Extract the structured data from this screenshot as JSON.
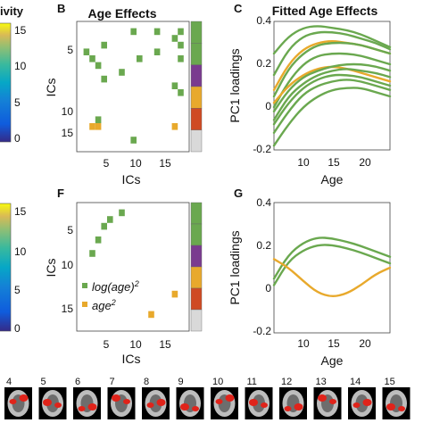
{
  "colors": {
    "green": "#6aa84f",
    "orange": "#e8a92c",
    "purple": "#7a3b8f",
    "red": "#cf4a23",
    "gray": "#d9d9d9"
  },
  "colorbar": {
    "label": "ivity",
    "ticks": [
      "15",
      "10",
      "5",
      "0"
    ]
  },
  "panels": {
    "B": {
      "letter": "B",
      "title": "Age Effects",
      "xlabel": "ICs",
      "ylabel": "ICs",
      "xticks": [
        "5",
        "10",
        "15"
      ],
      "yticks": [
        "5",
        "10",
        "15"
      ]
    },
    "C": {
      "letter": "C",
      "title": "Fitted Age Effects",
      "xlabel": "Age",
      "ylabel": "PC1 loadings",
      "xticks": [
        "10",
        "15",
        "20"
      ],
      "yticks": [
        "0.4",
        "0.2",
        "0",
        "-0.2"
      ]
    },
    "F": {
      "letter": "F",
      "xlabel": "ICs",
      "ylabel": "ICs",
      "xticks": [
        "5",
        "10",
        "15"
      ],
      "yticks": [
        "5",
        "10",
        "15"
      ],
      "legend_log": "log(age)",
      "legend_log_sup": "2",
      "legend_age": "age",
      "legend_age_sup": "2"
    },
    "G": {
      "letter": "G",
      "xlabel": "Age",
      "ylabel": "PC1 loadings",
      "xticks": [
        "10",
        "15",
        "20"
      ],
      "yticks": [
        "0.4",
        "0.2",
        "0",
        "-0.2"
      ]
    }
  },
  "brain_strip": {
    "labels": [
      "4",
      "5",
      "6",
      "7",
      "8",
      "9",
      "10",
      "11",
      "12",
      "13",
      "14",
      "15"
    ]
  },
  "chart_data": [
    {
      "type": "heatmap",
      "panel": "B",
      "title": "Age Effects",
      "xlabel": "ICs",
      "ylabel": "ICs",
      "xlim": [
        0,
        19
      ],
      "ylim": [
        0,
        19
      ],
      "green_cells": [
        [
          9,
          1
        ],
        [
          13,
          1
        ],
        [
          17,
          1
        ],
        [
          16,
          2
        ],
        [
          4,
          3
        ],
        [
          17,
          3
        ],
        [
          1,
          4
        ],
        [
          13,
          4
        ],
        [
          2,
          5
        ],
        [
          10,
          5
        ],
        [
          17,
          5
        ],
        [
          3,
          6
        ],
        [
          7,
          7
        ],
        [
          4,
          8
        ],
        [
          16,
          9
        ],
        [
          17,
          10
        ],
        [
          3,
          14
        ],
        [
          9,
          17
        ]
      ],
      "orange_cells": [
        [
          2,
          15
        ],
        [
          3,
          15
        ],
        [
          16,
          15
        ]
      ],
      "side_bar": [
        "green",
        "green",
        "purple",
        "orange",
        "red",
        "gray"
      ]
    },
    {
      "type": "line",
      "panel": "C",
      "title": "Fitted Age Effects",
      "xlabel": "Age",
      "ylabel": "PC1 loadings",
      "xlim": [
        6,
        22
      ],
      "ylim": [
        -0.2,
        0.4
      ],
      "x": [
        6,
        8,
        10,
        12,
        14,
        16,
        18,
        20,
        22
      ],
      "series": [
        {
          "color": "green",
          "values": [
            0.25,
            0.33,
            0.37,
            0.38,
            0.37,
            0.36,
            0.34,
            0.31,
            0.28
          ]
        },
        {
          "color": "green",
          "values": [
            0.15,
            0.27,
            0.33,
            0.35,
            0.35,
            0.34,
            0.32,
            0.3,
            0.27
          ]
        },
        {
          "color": "orange",
          "values": [
            0.08,
            0.2,
            0.27,
            0.3,
            0.31,
            0.3,
            0.29,
            0.27,
            0.25
          ]
        },
        {
          "color": "green",
          "values": [
            0.05,
            0.18,
            0.25,
            0.29,
            0.3,
            0.3,
            0.29,
            0.27,
            0.25
          ]
        },
        {
          "color": "green",
          "values": [
            0.0,
            0.12,
            0.2,
            0.24,
            0.25,
            0.25,
            0.24,
            0.22,
            0.2
          ]
        },
        {
          "color": "orange",
          "values": [
            0.02,
            0.1,
            0.15,
            0.18,
            0.19,
            0.18,
            0.16,
            0.14,
            0.12
          ]
        },
        {
          "color": "green",
          "values": [
            -0.02,
            0.08,
            0.14,
            0.17,
            0.19,
            0.2,
            0.2,
            0.19,
            0.17
          ]
        },
        {
          "color": "green",
          "values": [
            -0.06,
            0.05,
            0.11,
            0.15,
            0.17,
            0.18,
            0.17,
            0.16,
            0.14
          ]
        },
        {
          "color": "green",
          "values": [
            -0.08,
            0.02,
            0.09,
            0.13,
            0.15,
            0.15,
            0.14,
            0.12,
            0.1
          ]
        },
        {
          "color": "green",
          "values": [
            -0.12,
            -0.02,
            0.06,
            0.1,
            0.12,
            0.13,
            0.12,
            0.1,
            0.08
          ]
        },
        {
          "color": "green",
          "values": [
            -0.18,
            -0.08,
            0.0,
            0.05,
            0.08,
            0.09,
            0.09,
            0.07,
            0.05
          ]
        }
      ]
    },
    {
      "type": "heatmap",
      "panel": "F",
      "xlabel": "ICs",
      "ylabel": "ICs",
      "xlim": [
        0,
        19
      ],
      "ylim": [
        0,
        19
      ],
      "green_cells": [
        [
          7,
          1
        ],
        [
          5,
          2
        ],
        [
          4,
          3
        ],
        [
          3,
          5
        ],
        [
          2,
          7
        ]
      ],
      "orange_cells": [
        [
          16,
          13
        ],
        [
          12,
          16
        ]
      ],
      "side_bar": [
        "green",
        "green",
        "purple",
        "orange",
        "red",
        "gray"
      ]
    },
    {
      "type": "line",
      "panel": "G",
      "xlabel": "Age",
      "ylabel": "PC1 loadings",
      "xlim": [
        6,
        22
      ],
      "ylim": [
        -0.2,
        0.4
      ],
      "x": [
        6,
        8,
        10,
        12,
        14,
        16,
        18,
        20,
        22
      ],
      "series": [
        {
          "color": "green",
          "values": [
            0.05,
            0.16,
            0.215,
            0.24,
            0.235,
            0.22,
            0.2,
            0.175,
            0.15
          ]
        },
        {
          "color": "green",
          "values": [
            0.02,
            0.13,
            0.18,
            0.205,
            0.205,
            0.19,
            0.17,
            0.145,
            0.12
          ]
        },
        {
          "color": "orange",
          "values": [
            0.14,
            0.1,
            0.04,
            -0.015,
            -0.035,
            -0.02,
            0.02,
            0.07,
            0.1
          ]
        }
      ]
    }
  ]
}
